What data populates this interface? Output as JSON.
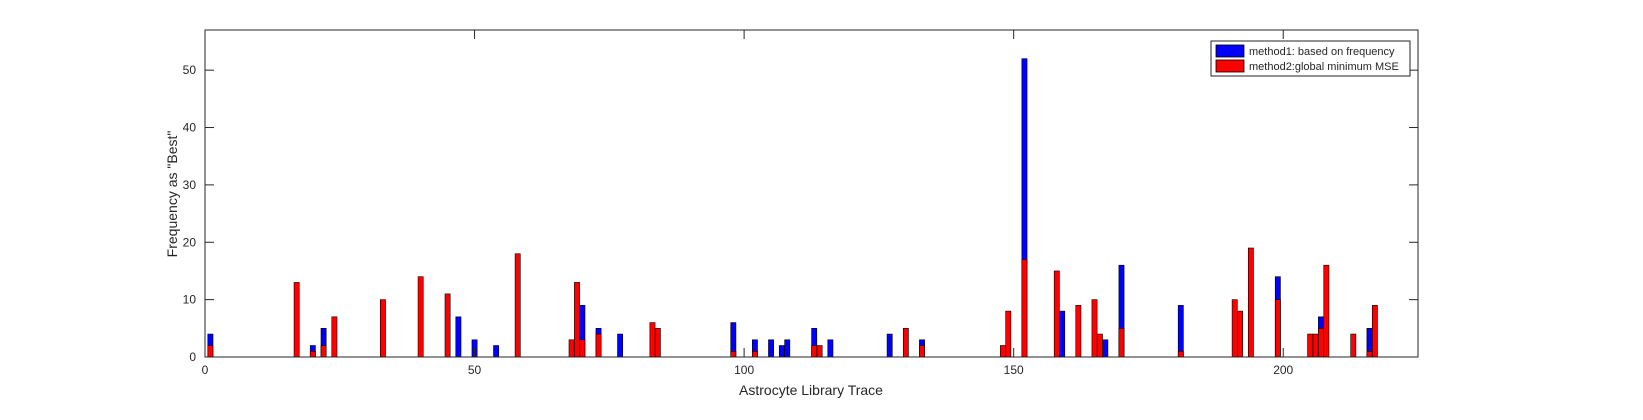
{
  "chart_data": {
    "type": "bar",
    "xlabel": "Astrocyte Library Trace",
    "ylabel": "Frequency as \"Best\"",
    "xlim": [
      0,
      225
    ],
    "ylim": [
      0,
      57
    ],
    "x_ticks": [
      0,
      50,
      100,
      150,
      200
    ],
    "y_ticks": [
      0,
      10,
      20,
      30,
      40,
      50
    ],
    "grid": false,
    "legend_position": "top-right",
    "series": [
      {
        "name": "method1: based on frequency",
        "color": "#0000ff",
        "points": [
          [
            1,
            4
          ],
          [
            20,
            2
          ],
          [
            22,
            5
          ],
          [
            47,
            7
          ],
          [
            50,
            3
          ],
          [
            54,
            2
          ],
          [
            70,
            9
          ],
          [
            73,
            5
          ],
          [
            77,
            4
          ],
          [
            98,
            6
          ],
          [
            102,
            3
          ],
          [
            105,
            3
          ],
          [
            107,
            2
          ],
          [
            108,
            3
          ],
          [
            113,
            5
          ],
          [
            116,
            3
          ],
          [
            127,
            4
          ],
          [
            133,
            3
          ],
          [
            152,
            52
          ],
          [
            159,
            8
          ],
          [
            167,
            3
          ],
          [
            170,
            16
          ],
          [
            181,
            9
          ],
          [
            199,
            14
          ],
          [
            207,
            7
          ],
          [
            216,
            5
          ]
        ]
      },
      {
        "name": "method2:global minimum MSE",
        "color": "#ff0000",
        "points": [
          [
            1,
            2
          ],
          [
            17,
            13
          ],
          [
            20,
            1
          ],
          [
            22,
            2
          ],
          [
            24,
            7
          ],
          [
            33,
            10
          ],
          [
            40,
            14
          ],
          [
            45,
            11
          ],
          [
            58,
            18
          ],
          [
            68,
            3
          ],
          [
            69,
            13
          ],
          [
            70,
            3
          ],
          [
            73,
            4
          ],
          [
            83,
            6
          ],
          [
            84,
            5
          ],
          [
            98,
            1
          ],
          [
            102,
            1
          ],
          [
            113,
            2
          ],
          [
            114,
            2
          ],
          [
            130,
            5
          ],
          [
            133,
            2
          ],
          [
            148,
            2
          ],
          [
            149,
            8
          ],
          [
            152,
            17
          ],
          [
            158,
            15
          ],
          [
            162,
            9
          ],
          [
            165,
            10
          ],
          [
            166,
            4
          ],
          [
            170,
            5
          ],
          [
            181,
            1
          ],
          [
            191,
            10
          ],
          [
            192,
            8
          ],
          [
            194,
            19
          ],
          [
            199,
            10
          ],
          [
            205,
            4
          ],
          [
            206,
            4
          ],
          [
            207,
            5
          ],
          [
            208,
            16
          ],
          [
            213,
            4
          ],
          [
            216,
            1
          ],
          [
            217,
            9
          ]
        ]
      }
    ]
  }
}
